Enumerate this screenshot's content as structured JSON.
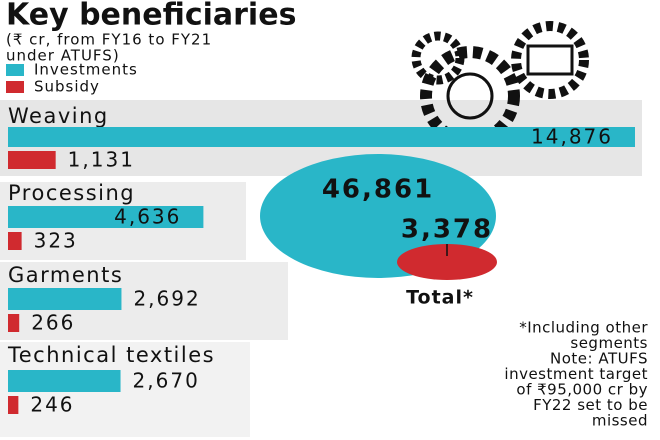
{
  "chart_data": {
    "type": "bar",
    "orientation": "horizontal",
    "title": "Key beneficiaries",
    "subtitle": [
      "(₹ cr, from FY16 to FY21",
      "under ATUFS)"
    ],
    "categories": [
      "Weaving",
      "Processing",
      "Garments",
      "Technical textiles"
    ],
    "series": [
      {
        "name": "Investments",
        "color": "#29b6c8",
        "values": [
          14876,
          4636,
          2692,
          2670
        ],
        "value_labels": [
          "14,876",
          "4,636",
          "2,692",
          "2,670"
        ]
      },
      {
        "name": "Subsidy",
        "color": "#d02a2f",
        "values": [
          1131,
          323,
          266,
          246
        ],
        "value_labels": [
          "1,131",
          "323",
          "266",
          "246"
        ]
      }
    ],
    "total": {
      "label": "Total*",
      "values": [
        46861,
        3378
      ],
      "value_labels": [
        "46,861",
        "3,378"
      ]
    },
    "notes": [
      "*Including other",
      "segments",
      "Note: ATUFS",
      "investment target",
      "of ₹95,000 cr by",
      "FY22 set to be",
      "missed"
    ]
  }
}
